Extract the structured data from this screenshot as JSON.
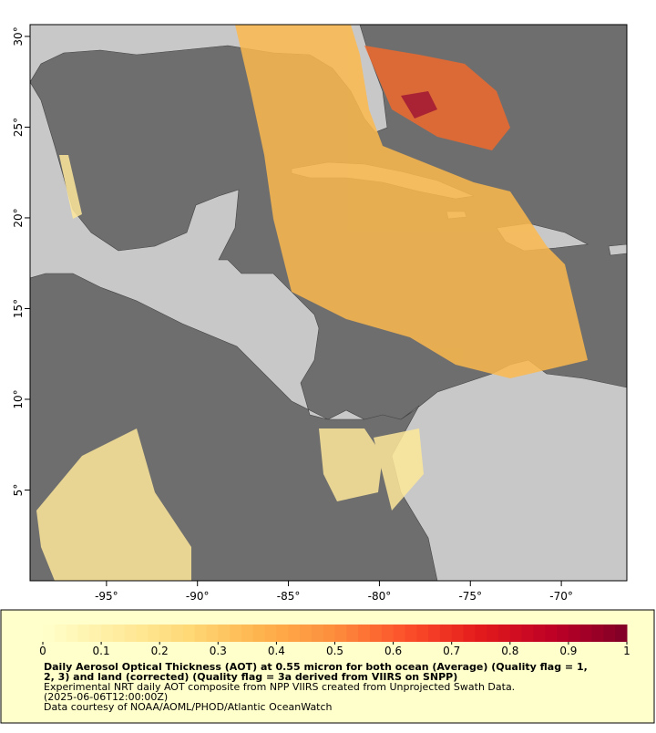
{
  "map": {
    "xlim": [
      -99.2,
      -66.4
    ],
    "ylim": [
      0.0,
      30.65
    ],
    "xticks": [
      {
        "value": -95,
        "label": "-95°"
      },
      {
        "value": -90,
        "label": "-90°"
      },
      {
        "value": -85,
        "label": "-85°"
      },
      {
        "value": -80,
        "label": "-80°"
      },
      {
        "value": -75,
        "label": "-75°"
      },
      {
        "value": -70,
        "label": "-70°"
      }
    ],
    "yticks": [
      {
        "value": 5,
        "label": "5°"
      },
      {
        "value": 10,
        "label": "10°"
      },
      {
        "value": 15,
        "label": "15°"
      },
      {
        "value": 20,
        "label": "20°"
      },
      {
        "value": 25,
        "label": "25°"
      },
      {
        "value": 30,
        "label": "30°"
      }
    ]
  },
  "colorbar": {
    "range": [
      0,
      1
    ],
    "ticks": [
      0,
      0.1,
      0.2,
      0.3,
      0.4,
      0.5,
      0.6,
      0.7,
      0.8,
      0.9,
      1
    ],
    "colors": [
      "#ffffcc",
      "#ffeda0",
      "#fed976",
      "#feb24c",
      "#fd8d3c",
      "#fc4e2a",
      "#e31a1c",
      "#bd0026",
      "#800026"
    ]
  },
  "caption": {
    "lines": [
      "Daily Aerosol Optical Thickness (AOT) at 0.55 micron for both ocean (Average) (Quality flag = 1,",
      "2, 3) and land (corrected) (Quality flag = 3a derived from VIIRS on SNPP)",
      "Experimental NRT daily AOT composite from NPP VIIRS created from Unprojected Swath Data.",
      "(2025-06-06T12:00:00Z)",
      "Data courtesy of NOAA/AOML/PHOD/Atlantic OceanWatch"
    ]
  }
}
